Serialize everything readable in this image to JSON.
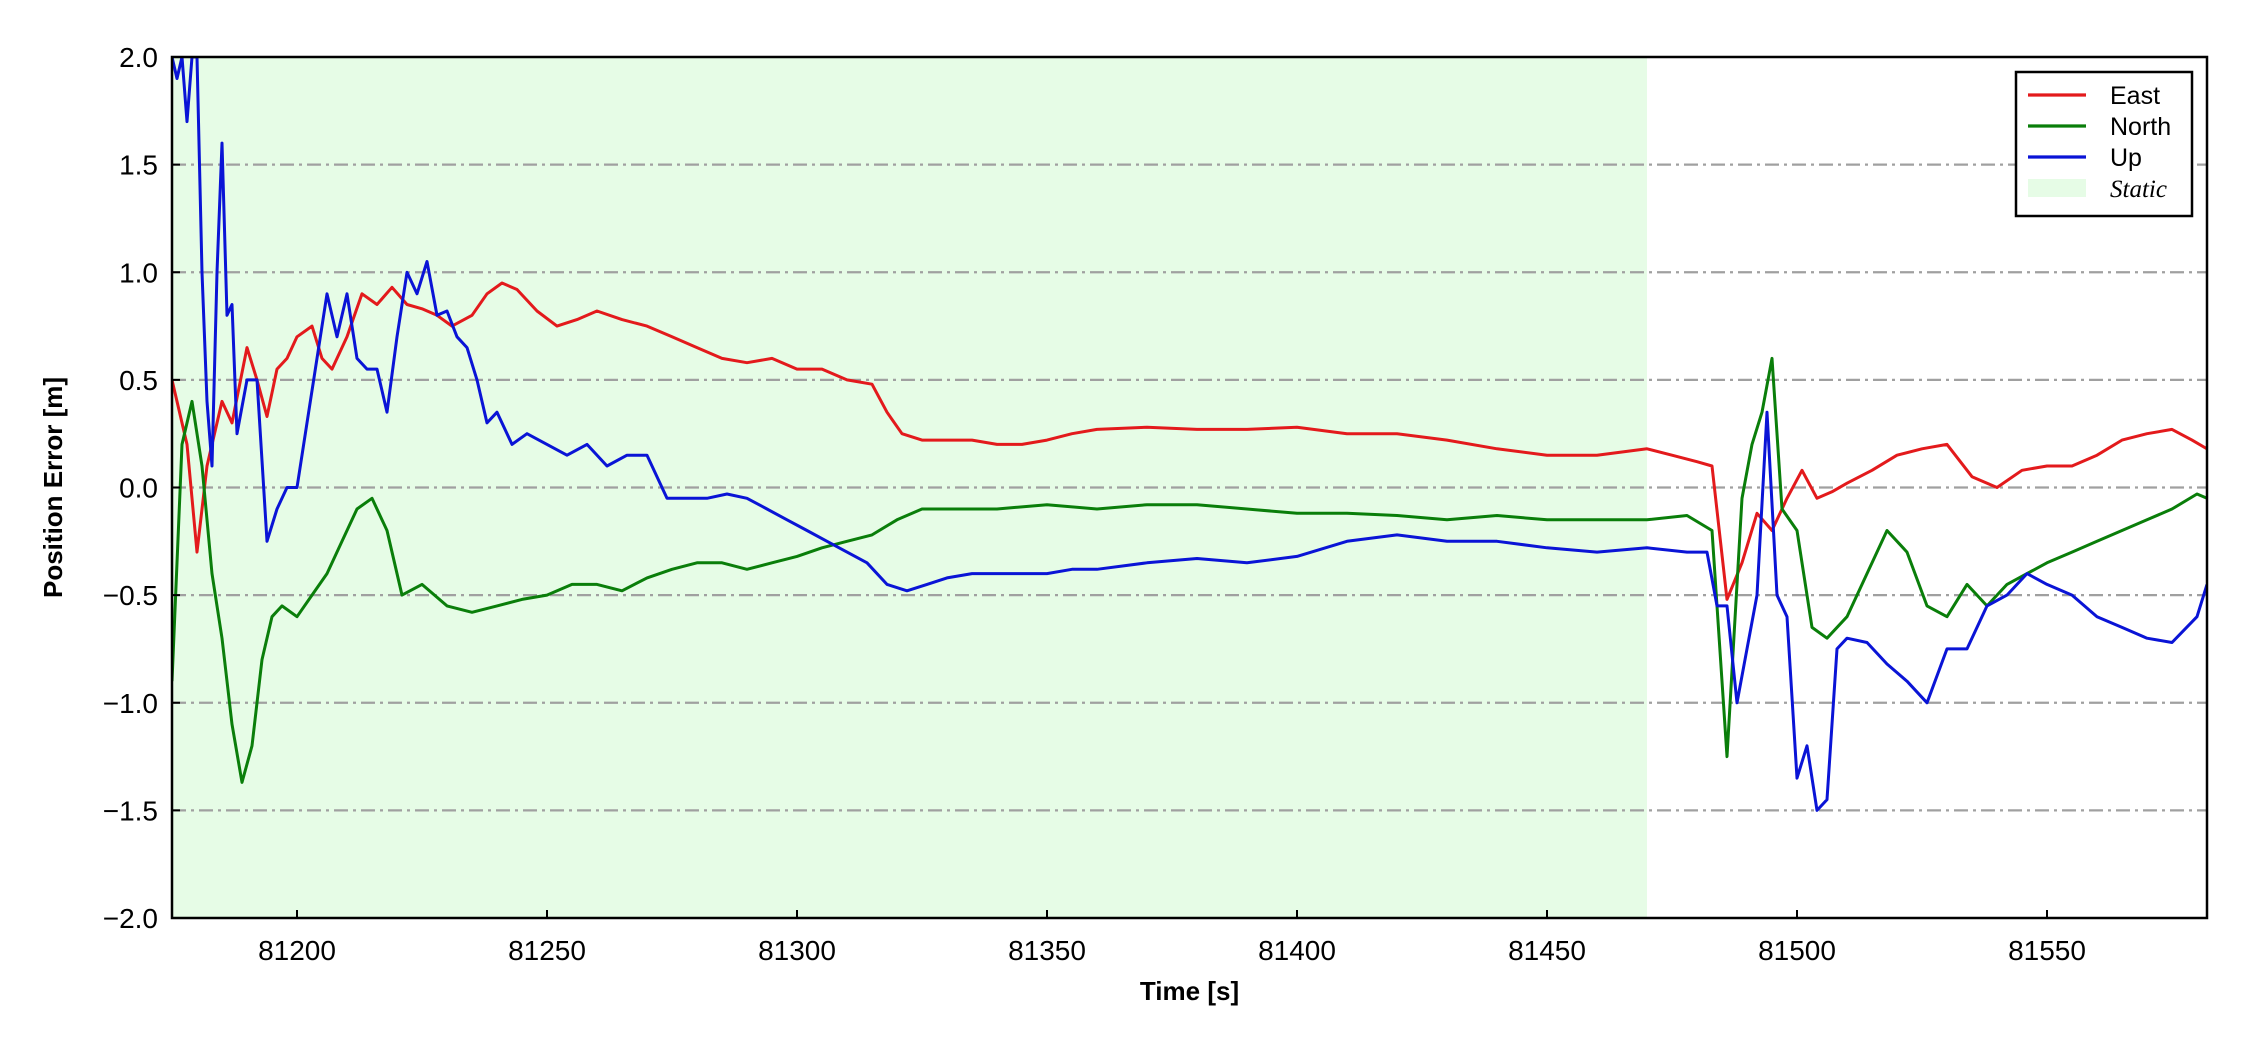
{
  "chart_data": {
    "type": "line",
    "title": "",
    "xlabel": "Time [s]",
    "ylabel": "Position Error [m]",
    "xlim": [
      81175,
      81582
    ],
    "ylim": [
      -2.0,
      2.0
    ],
    "xticks": [
      81200,
      81250,
      81300,
      81350,
      81400,
      81450,
      81500,
      81550
    ],
    "xtick_labels": [
      "81200",
      "81250",
      "81300",
      "81350",
      "81400",
      "81450",
      "81500",
      "81550"
    ],
    "yticks": [
      -2.0,
      -1.5,
      -1.0,
      -0.5,
      0.0,
      0.5,
      1.0,
      1.5,
      2.0
    ],
    "ytick_labels": [
      "−2.0",
      "−1.5",
      "−1.0",
      "−0.5",
      "0.0",
      "0.5",
      "1.0",
      "1.5",
      "2.0"
    ],
    "grid": "horizontal dash-dot",
    "legend_position": "top-right",
    "shaded_region": {
      "label": "Static",
      "x_start": 81175,
      "x_end": 81470,
      "color": "#e6fce6"
    },
    "series": [
      {
        "name": "East",
        "color": "#e31a1c",
        "x": [
          81175,
          81178,
          81180,
          81182,
          81185,
          81187,
          81190,
          81192,
          81194,
          81196,
          81198,
          81200,
          81203,
          81205,
          81207,
          81210,
          81213,
          81216,
          81219,
          81222,
          81225,
          81228,
          81231,
          81235,
          81238,
          81241,
          81244,
          81248,
          81252,
          81256,
          81260,
          81265,
          81270,
          81275,
          81280,
          81285,
          81290,
          81295,
          81300,
          81305,
          81310,
          81315,
          81318,
          81321,
          81325,
          81330,
          81335,
          81340,
          81345,
          81350,
          81355,
          81360,
          81370,
          81380,
          81390,
          81400,
          81410,
          81420,
          81430,
          81440,
          81450,
          81460,
          81470,
          81475,
          81480,
          81483,
          81486,
          81489,
          81492,
          81495,
          81498,
          81501,
          81504,
          81507,
          81510,
          81515,
          81520,
          81525,
          81530,
          81535,
          81540,
          81545,
          81550,
          81555,
          81560,
          81565,
          81570,
          81575,
          81579,
          81582
        ],
        "y": [
          0.5,
          0.2,
          -0.3,
          0.1,
          0.4,
          0.3,
          0.65,
          0.5,
          0.33,
          0.55,
          0.6,
          0.7,
          0.75,
          0.6,
          0.55,
          0.7,
          0.9,
          0.85,
          0.93,
          0.85,
          0.83,
          0.8,
          0.75,
          0.8,
          0.9,
          0.95,
          0.92,
          0.82,
          0.75,
          0.78,
          0.82,
          0.78,
          0.75,
          0.7,
          0.65,
          0.6,
          0.58,
          0.6,
          0.55,
          0.55,
          0.5,
          0.48,
          0.35,
          0.25,
          0.22,
          0.22,
          0.22,
          0.2,
          0.2,
          0.22,
          0.25,
          0.27,
          0.28,
          0.27,
          0.27,
          0.28,
          0.25,
          0.25,
          0.22,
          0.18,
          0.15,
          0.15,
          0.18,
          0.15,
          0.12,
          0.1,
          -0.52,
          -0.35,
          -0.12,
          -0.2,
          -0.05,
          0.08,
          -0.05,
          -0.02,
          0.02,
          0.08,
          0.15,
          0.18,
          0.2,
          0.05,
          0.0,
          0.08,
          0.1,
          0.1,
          0.15,
          0.22,
          0.25,
          0.27,
          0.22,
          0.18
        ]
      },
      {
        "name": "North",
        "color": "#0a7e0a",
        "x": [
          81175,
          81177,
          81179,
          81181,
          81183,
          81185,
          81187,
          81189,
          81191,
          81193,
          81195,
          81197,
          81200,
          81203,
          81206,
          81209,
          81212,
          81215,
          81218,
          81221,
          81225,
          81230,
          81235,
          81240,
          81245,
          81250,
          81255,
          81260,
          81265,
          81270,
          81275,
          81280,
          81285,
          81290,
          81295,
          81300,
          81305,
          81310,
          81315,
          81320,
          81325,
          81330,
          81340,
          81350,
          81360,
          81370,
          81380,
          81390,
          81400,
          81410,
          81420,
          81430,
          81440,
          81450,
          81460,
          81470,
          81478,
          81483,
          81486,
          81489,
          81491,
          81493,
          81495,
          81497,
          81500,
          81503,
          81506,
          81510,
          81514,
          81518,
          81522,
          81526,
          81530,
          81534,
          81538,
          81542,
          81546,
          81550,
          81555,
          81560,
          81565,
          81570,
          81575,
          81580,
          81582
        ],
        "y": [
          -0.9,
          0.2,
          0.4,
          0.1,
          -0.4,
          -0.7,
          -1.1,
          -1.37,
          -1.2,
          -0.8,
          -0.6,
          -0.55,
          -0.6,
          -0.5,
          -0.4,
          -0.25,
          -0.1,
          -0.05,
          -0.2,
          -0.5,
          -0.45,
          -0.55,
          -0.58,
          -0.55,
          -0.52,
          -0.5,
          -0.45,
          -0.45,
          -0.48,
          -0.42,
          -0.38,
          -0.35,
          -0.35,
          -0.38,
          -0.35,
          -0.32,
          -0.28,
          -0.25,
          -0.22,
          -0.15,
          -0.1,
          -0.1,
          -0.1,
          -0.08,
          -0.1,
          -0.08,
          -0.08,
          -0.1,
          -0.12,
          -0.12,
          -0.13,
          -0.15,
          -0.13,
          -0.15,
          -0.15,
          -0.15,
          -0.13,
          -0.2,
          -1.25,
          -0.05,
          0.2,
          0.35,
          0.6,
          -0.1,
          -0.2,
          -0.65,
          -0.7,
          -0.6,
          -0.4,
          -0.2,
          -0.3,
          -0.55,
          -0.6,
          -0.45,
          -0.55,
          -0.45,
          -0.4,
          -0.35,
          -0.3,
          -0.25,
          -0.2,
          -0.15,
          -0.1,
          -0.03,
          -0.05
        ]
      },
      {
        "name": "Up",
        "color": "#0a14d6",
        "x": [
          81175,
          81176,
          81177,
          81178,
          81179,
          81180,
          81181,
          81182,
          81183,
          81184,
          81185,
          81186,
          81187,
          81188,
          81190,
          81192,
          81194,
          81196,
          81198,
          81200,
          81202,
          81204,
          81206,
          81208,
          81210,
          81212,
          81214,
          81216,
          81218,
          81220,
          81222,
          81224,
          81226,
          81228,
          81230,
          81232,
          81234,
          81236,
          81238,
          81240,
          81243,
          81246,
          81250,
          81254,
          81258,
          81262,
          81266,
          81270,
          81274,
          81278,
          81282,
          81286,
          81290,
          81294,
          81298,
          81302,
          81306,
          81310,
          81314,
          81318,
          81322,
          81326,
          81330,
          81335,
          81340,
          81345,
          81350,
          81355,
          81360,
          81370,
          81380,
          81390,
          81400,
          81410,
          81420,
          81430,
          81440,
          81450,
          81460,
          81470,
          81478,
          81482,
          81484,
          81486,
          81488,
          81490,
          81492,
          81494,
          81496,
          81498,
          81500,
          81502,
          81504,
          81506,
          81508,
          81510,
          81514,
          81518,
          81522,
          81526,
          81530,
          81534,
          81538,
          81542,
          81546,
          81550,
          81555,
          81560,
          81565,
          81570,
          81575,
          81580,
          81582
        ],
        "y": [
          2.0,
          1.9,
          2.0,
          1.7,
          2.0,
          2.0,
          1.0,
          0.4,
          0.1,
          1.0,
          1.6,
          0.8,
          0.85,
          0.25,
          0.5,
          0.5,
          -0.25,
          -0.1,
          0.0,
          0.0,
          0.3,
          0.6,
          0.9,
          0.7,
          0.9,
          0.6,
          0.55,
          0.55,
          0.35,
          0.7,
          1.0,
          0.9,
          1.05,
          0.8,
          0.82,
          0.7,
          0.65,
          0.5,
          0.3,
          0.35,
          0.2,
          0.25,
          0.2,
          0.15,
          0.2,
          0.1,
          0.15,
          0.15,
          -0.05,
          -0.05,
          -0.05,
          -0.03,
          -0.05,
          -0.1,
          -0.15,
          -0.2,
          -0.25,
          -0.3,
          -0.35,
          -0.45,
          -0.48,
          -0.45,
          -0.42,
          -0.4,
          -0.4,
          -0.4,
          -0.4,
          -0.38,
          -0.38,
          -0.35,
          -0.33,
          -0.35,
          -0.32,
          -0.25,
          -0.22,
          -0.25,
          -0.25,
          -0.28,
          -0.3,
          -0.28,
          -0.3,
          -0.3,
          -0.55,
          -0.55,
          -1.0,
          -0.75,
          -0.5,
          0.35,
          -0.5,
          -0.6,
          -1.35,
          -1.2,
          -1.5,
          -1.45,
          -0.75,
          -0.7,
          -0.72,
          -0.82,
          -0.9,
          -1.0,
          -0.75,
          -0.75,
          -0.55,
          -0.5,
          -0.4,
          -0.45,
          -0.5,
          -0.6,
          -0.65,
          -0.7,
          -0.72,
          -0.6,
          -0.45
        ]
      }
    ]
  }
}
